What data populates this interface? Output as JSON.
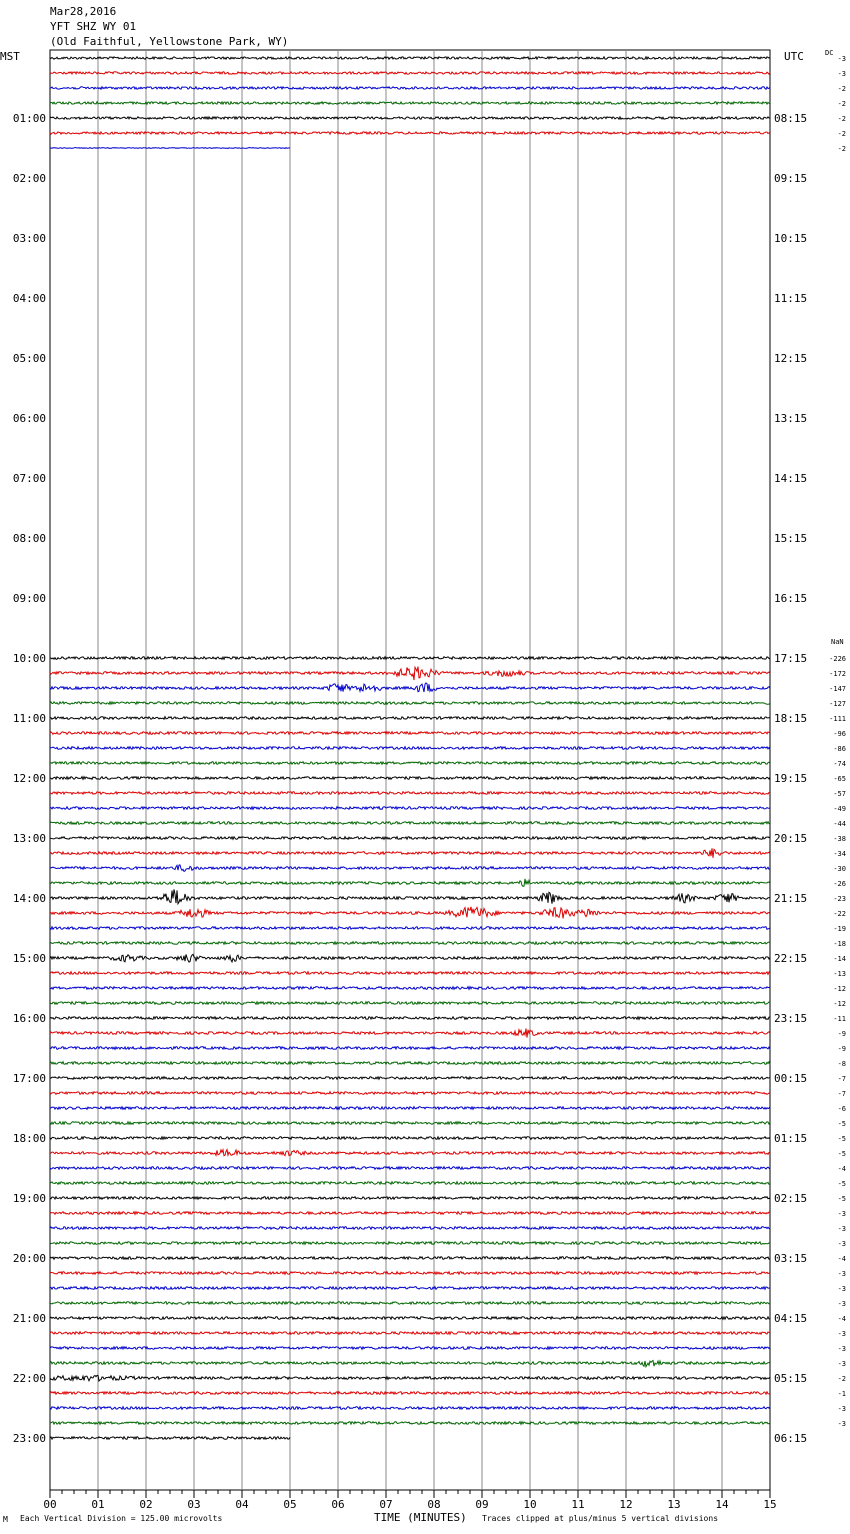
{
  "header": {
    "date": "Mar28,2016",
    "station": "YFT SHZ WY 01",
    "location": "(Old Faithful, Yellowstone Park, WY)",
    "left_timezone": "MST",
    "right_timezone": "UTC",
    "dc_label": "DC",
    "nan_label": "NaN"
  },
  "chart_data": {
    "type": "line",
    "title": "YFT SHZ WY 01",
    "xlabel": "TIME (MINUTES)",
    "x_ticks": [
      "00",
      "01",
      "02",
      "03",
      "04",
      "05",
      "06",
      "07",
      "08",
      "09",
      "10",
      "11",
      "12",
      "13",
      "14",
      "15"
    ],
    "xlim": [
      0,
      15
    ],
    "left_hour_labels": [
      "01:00",
      "02:00",
      "03:00",
      "04:00",
      "05:00",
      "06:00",
      "07:00",
      "08:00",
      "09:00",
      "10:00",
      "11:00",
      "12:00",
      "13:00",
      "14:00",
      "15:00",
      "16:00",
      "17:00",
      "18:00",
      "19:00",
      "20:00",
      "21:00",
      "22:00",
      "23:00"
    ],
    "left_hour_first_row": 4,
    "right_hour_labels": [
      "08:15",
      "09:15",
      "10:15",
      "11:15",
      "12:15",
      "13:15",
      "14:15",
      "15:15",
      "16:15",
      "17:15",
      "18:15",
      "19:15",
      "20:15",
      "21:15",
      "22:15",
      "23:15",
      "00:15",
      "01:15",
      "02:15",
      "03:15",
      "04:15",
      "05:15",
      "06:15"
    ],
    "series_colors": [
      "#000000",
      "#dd0000",
      "#0000cc",
      "#006600"
    ],
    "rows_total": 93,
    "traces": [
      {
        "row": 0,
        "end": 15,
        "amp": 1.2
      },
      {
        "row": 1,
        "end": 15,
        "amp": 1.2
      },
      {
        "row": 2,
        "end": 15,
        "amp": 1.2
      },
      {
        "row": 3,
        "end": 15,
        "amp": 1.2
      },
      {
        "row": 4,
        "end": 15,
        "amp": 1.2
      },
      {
        "row": 5,
        "end": 15,
        "amp": 1.2
      },
      {
        "row": 6,
        "end": 5,
        "amp": 0.4
      }
    ],
    "evening_start_row": 40,
    "evening_end_row": 92,
    "last_row_end": 5,
    "bursts": [
      {
        "row": 41,
        "x": 7.6,
        "w": 0.6,
        "a": 6
      },
      {
        "row": 41,
        "x": 9.5,
        "w": 0.5,
        "a": 3
      },
      {
        "row": 42,
        "x": 6.0,
        "w": 0.3,
        "a": 5
      },
      {
        "row": 42,
        "x": 6.6,
        "w": 0.4,
        "a": 4
      },
      {
        "row": 42,
        "x": 7.8,
        "w": 0.3,
        "a": 5
      },
      {
        "row": 53,
        "x": 13.8,
        "w": 0.3,
        "a": 4
      },
      {
        "row": 54,
        "x": 2.8,
        "w": 0.3,
        "a": 3
      },
      {
        "row": 55,
        "x": 9.9,
        "w": 0.2,
        "a": 3
      },
      {
        "row": 56,
        "x": 2.6,
        "w": 0.4,
        "a": 8
      },
      {
        "row": 56,
        "x": 10.4,
        "w": 0.3,
        "a": 6
      },
      {
        "row": 56,
        "x": 13.2,
        "w": 0.3,
        "a": 4
      },
      {
        "row": 56,
        "x": 14.1,
        "w": 0.3,
        "a": 5
      },
      {
        "row": 57,
        "x": 3.0,
        "w": 0.4,
        "a": 5
      },
      {
        "row": 57,
        "x": 8.8,
        "w": 0.6,
        "a": 6
      },
      {
        "row": 57,
        "x": 10.6,
        "w": 0.5,
        "a": 5
      },
      {
        "row": 57,
        "x": 11.2,
        "w": 0.3,
        "a": 4
      },
      {
        "row": 60,
        "x": 1.6,
        "w": 0.4,
        "a": 3
      },
      {
        "row": 60,
        "x": 2.9,
        "w": 0.3,
        "a": 4
      },
      {
        "row": 60,
        "x": 3.8,
        "w": 0.2,
        "a": 4
      },
      {
        "row": 65,
        "x": 9.9,
        "w": 0.3,
        "a": 4
      },
      {
        "row": 73,
        "x": 3.7,
        "w": 0.4,
        "a": 3
      },
      {
        "row": 73,
        "x": 5.0,
        "w": 0.4,
        "a": 2
      },
      {
        "row": 87,
        "x": 12.5,
        "w": 0.3,
        "a": 4
      },
      {
        "row": 88,
        "x": 0.8,
        "w": 1.2,
        "a": 2
      }
    ],
    "right_values_top": [
      "-3",
      "-3",
      "-2",
      "-2",
      "-2",
      "-2",
      "-2"
    ],
    "right_values_bottom": [
      "-226",
      "-172",
      "-147",
      "-127",
      "-111",
      "-96",
      "-86",
      "-74",
      "-65",
      "-57",
      "-49",
      "-44",
      "-38",
      "-34",
      "-30",
      "-26",
      "-23",
      "-22",
      "-19",
      "-18",
      "-14",
      "-13",
      "-12",
      "-12",
      "-11",
      "-9",
      "-9",
      "-8",
      "-7",
      "-7",
      "-6",
      "-5",
      "-5",
      "-5",
      "-4",
      "-5",
      "-5",
      "-3",
      "-3",
      "-3",
      "-4",
      "-3",
      "-3",
      "-3",
      "-4",
      "-3",
      "-3",
      "-3",
      "-2",
      "-1",
      "-3",
      "-3"
    ]
  },
  "footer": {
    "scale_note": "Each Vertical Division =  125.00 microvolts",
    "xlabel": "TIME (MINUTES)",
    "clip_note": "Traces clipped at plus/minus 5 vertical divisions",
    "corner_mark": "M"
  }
}
